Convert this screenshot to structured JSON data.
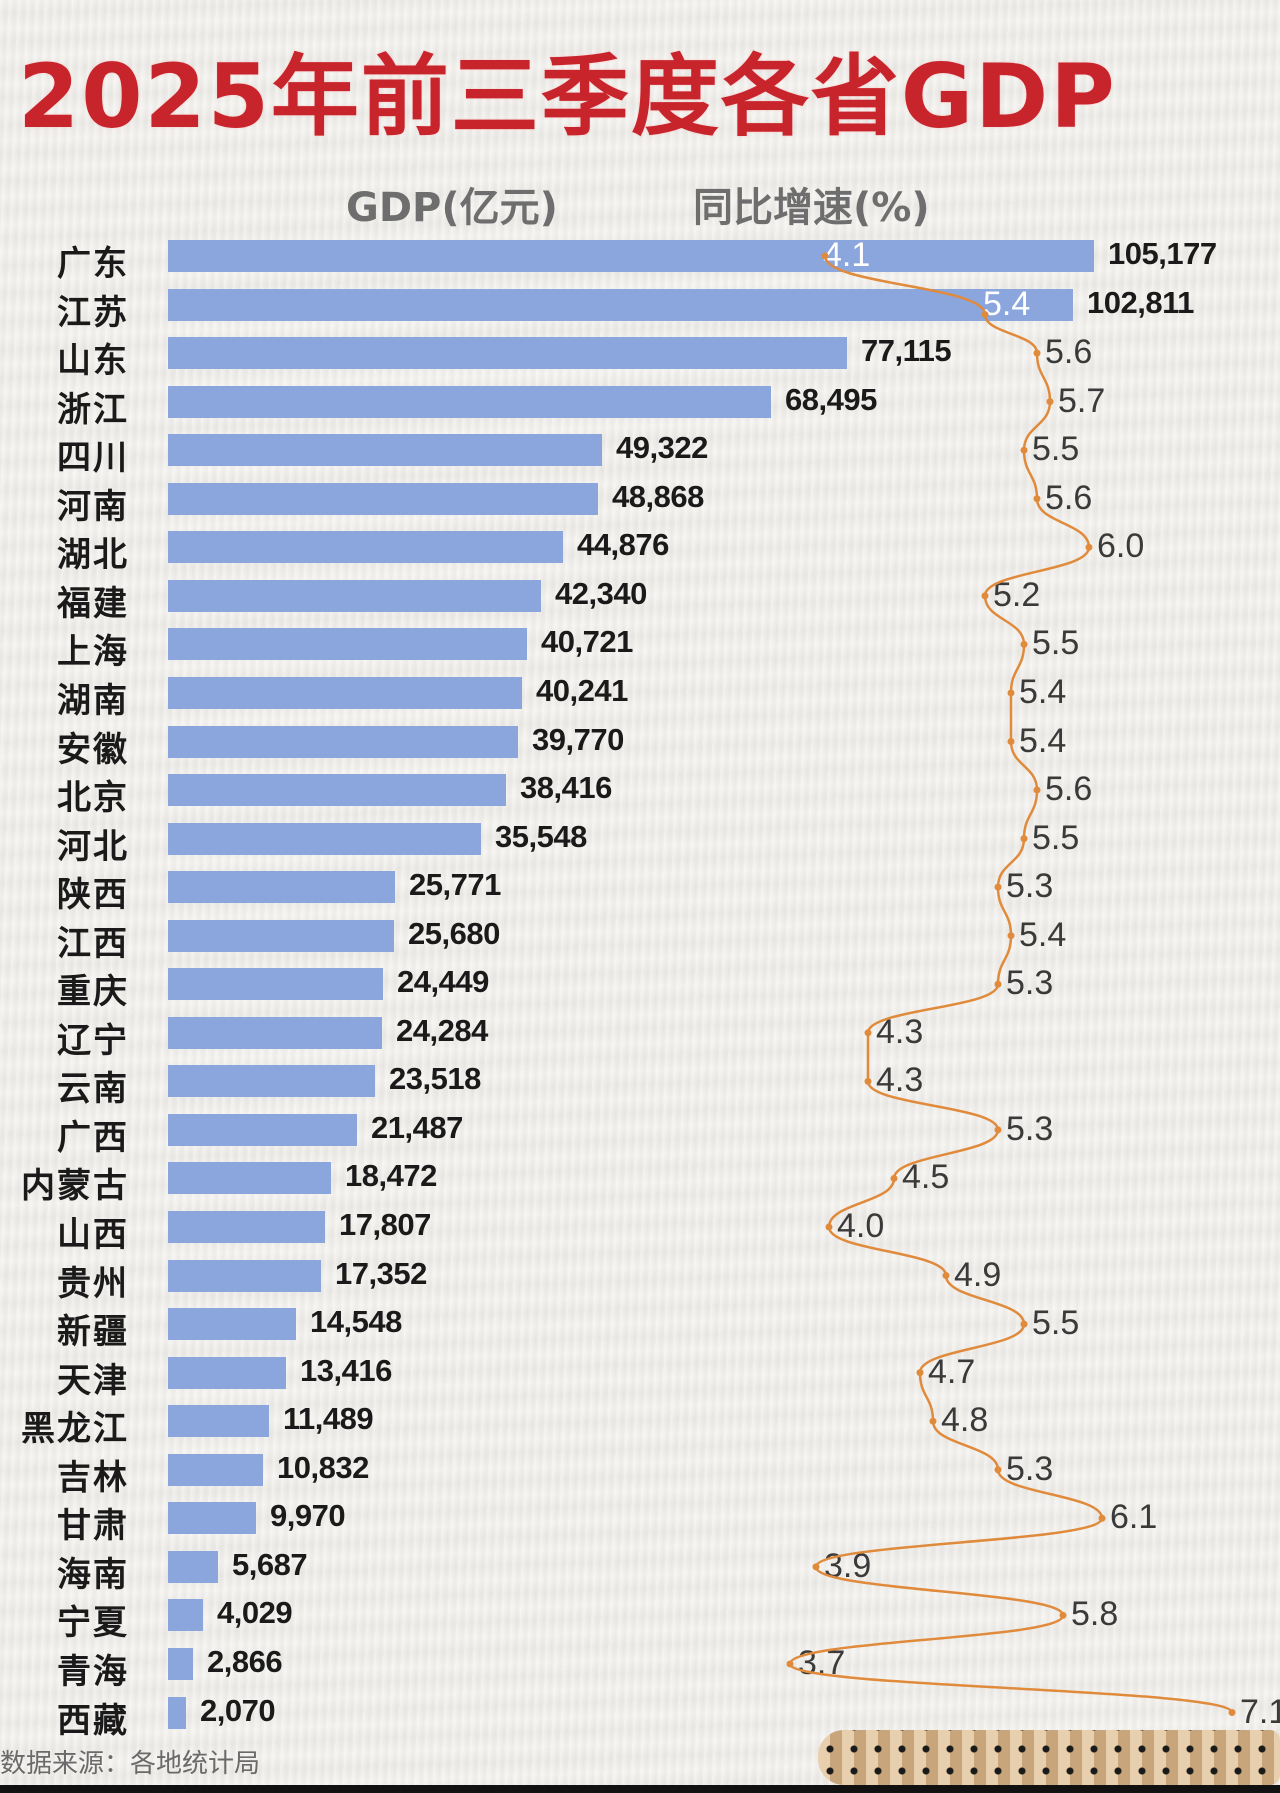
{
  "header": {
    "title": "2025年前三季度各省GDP",
    "gdp_column": "GDP(亿元)",
    "growth_column": "同比增速(%)"
  },
  "footer": {
    "source": "数据来源：各地统计局"
  },
  "colors": {
    "title": "#c8242c",
    "bar": "#8aa6dd",
    "line": "#e08a3c",
    "background": "#f1efeb"
  },
  "rows": [
    {
      "province": "广东",
      "gdp": "105,177",
      "growth": "4.1"
    },
    {
      "province": "江苏",
      "gdp": "102,811",
      "growth": "5.4"
    },
    {
      "province": "山东",
      "gdp": "77,115",
      "growth": "5.6"
    },
    {
      "province": "浙江",
      "gdp": "68,495",
      "growth": "5.7"
    },
    {
      "province": "四川",
      "gdp": "49,322",
      "growth": "5.5"
    },
    {
      "province": "河南",
      "gdp": "48,868",
      "growth": "5.6"
    },
    {
      "province": "湖北",
      "gdp": "44,876",
      "growth": "6.0"
    },
    {
      "province": "福建",
      "gdp": "42,340",
      "growth": "5.2"
    },
    {
      "province": "上海",
      "gdp": "40,721",
      "growth": "5.5"
    },
    {
      "province": "湖南",
      "gdp": "40,241",
      "growth": "5.4"
    },
    {
      "province": "安徽",
      "gdp": "39,770",
      "growth": "5.4"
    },
    {
      "province": "北京",
      "gdp": "38,416",
      "growth": "5.6"
    },
    {
      "province": "河北",
      "gdp": "35,548",
      "growth": "5.5"
    },
    {
      "province": "陕西",
      "gdp": "25,771",
      "growth": "5.3"
    },
    {
      "province": "江西",
      "gdp": "25,680",
      "growth": "5.4"
    },
    {
      "province": "重庆",
      "gdp": "24,449",
      "growth": "5.3"
    },
    {
      "province": "辽宁",
      "gdp": "24,284",
      "growth": "4.3"
    },
    {
      "province": "云南",
      "gdp": "23,518",
      "growth": "4.3"
    },
    {
      "province": "广西",
      "gdp": "21,487",
      "growth": "5.3"
    },
    {
      "province": "内蒙古",
      "gdp": "18,472",
      "growth": "4.5"
    },
    {
      "province": "山西",
      "gdp": "17,807",
      "growth": "4.0"
    },
    {
      "province": "贵州",
      "gdp": "17,352",
      "growth": "4.9"
    },
    {
      "province": "新疆",
      "gdp": "14,548",
      "growth": "5.5"
    },
    {
      "province": "天津",
      "gdp": "13,416",
      "growth": "4.7"
    },
    {
      "province": "黑龙江",
      "gdp": "11,489",
      "growth": "4.8"
    },
    {
      "province": "吉林",
      "gdp": "10,832",
      "growth": "5.3"
    },
    {
      "province": "甘肃",
      "gdp": "9,970",
      "growth": "6.1"
    },
    {
      "province": "海南",
      "gdp": "5,687",
      "growth": "3.9"
    },
    {
      "province": "宁夏",
      "gdp": "4,029",
      "growth": "5.8"
    },
    {
      "province": "青海",
      "gdp": "2,866",
      "growth": "3.7"
    },
    {
      "province": "西藏",
      "gdp": "2,070",
      "growth": "7.1"
    }
  ],
  "chart_data": {
    "type": "bar",
    "title": "2025年前三季度各省GDP",
    "orientation": "horizontal",
    "categories": [
      "广东",
      "江苏",
      "山东",
      "浙江",
      "四川",
      "河南",
      "湖北",
      "福建",
      "上海",
      "湖南",
      "安徽",
      "北京",
      "河北",
      "陕西",
      "江西",
      "重庆",
      "辽宁",
      "云南",
      "广西",
      "内蒙古",
      "山西",
      "贵州",
      "新疆",
      "天津",
      "黑龙江",
      "吉林",
      "甘肃",
      "海南",
      "宁夏",
      "青海",
      "西藏"
    ],
    "series": [
      {
        "name": "GDP(亿元)",
        "type": "bar",
        "values": [
          105177,
          102811,
          77115,
          68495,
          49322,
          48868,
          44876,
          42340,
          40721,
          40241,
          39770,
          38416,
          35548,
          25771,
          25680,
          24449,
          24284,
          23518,
          21487,
          18472,
          17807,
          17352,
          14548,
          13416,
          11489,
          10832,
          9970,
          5687,
          4029,
          2866,
          2070
        ]
      },
      {
        "name": "同比增速(%)",
        "type": "line",
        "values": [
          4.1,
          5.4,
          5.6,
          5.7,
          5.5,
          5.6,
          6.0,
          5.2,
          5.5,
          5.4,
          5.4,
          5.6,
          5.5,
          5.3,
          5.4,
          5.3,
          4.3,
          4.3,
          5.3,
          4.5,
          4.0,
          4.9,
          5.5,
          4.7,
          4.8,
          5.3,
          6.1,
          3.9,
          5.8,
          3.7,
          7.1
        ]
      }
    ],
    "xlabel": "",
    "ylabel": "",
    "grid": false,
    "legend": "column headers at top",
    "source": "数据来源：各地统计局"
  }
}
